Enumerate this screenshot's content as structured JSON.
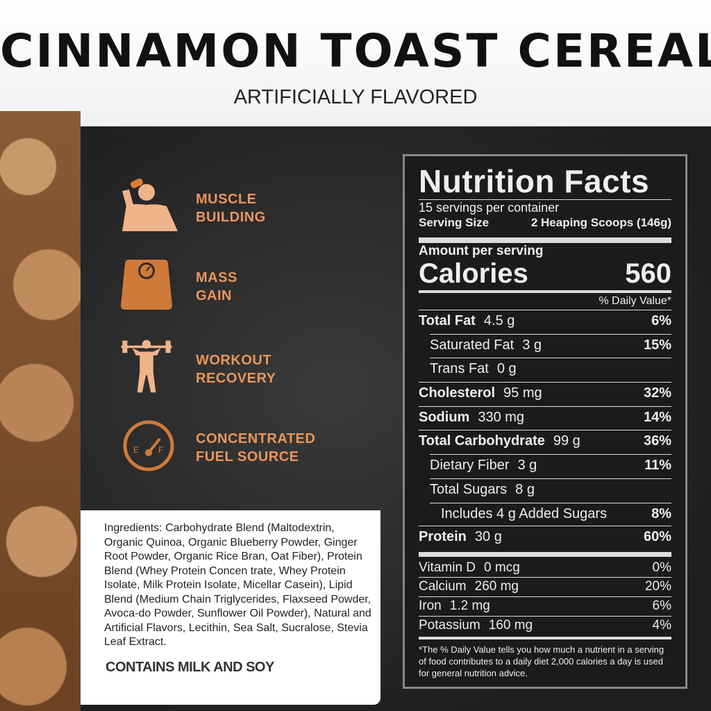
{
  "header": {
    "title": "CINNAMON TOAST CEREAL",
    "subtitle": "ARTIFICIALLY FLAVORED"
  },
  "features": [
    {
      "icon": "drinking-man-icon",
      "label": "MUSCLE BUILDING"
    },
    {
      "icon": "scale-icon",
      "label": "MASS GAIN"
    },
    {
      "icon": "weightlifter-icon",
      "label": "WORKOUT RECOVERY"
    },
    {
      "icon": "fuel-gauge-icon",
      "label": "CONCENTRATED FUEL SOURCE"
    }
  ],
  "colors": {
    "accent": "#e8965c",
    "icon": "#f0b48a",
    "panel": "#2a2a2a"
  },
  "ingredients": {
    "label": "Ingredients:",
    "text": "Carbohydrate Blend (Maltodextrin, Organic Quinoa, Organic Blueberry Powder, Ginger Root Powder, Organic Rice Bran, Oat Fiber), Protein Blend (Whey Protein Concen trate, Whey Protein Isolate, Milk Protein Isolate, Micellar Casein), Lipid Blend (Medium Chain Triglycerides, Flaxseed Powder, Avoca-do Powder, Sunflower Oil Powder), Natural and Artificial Flavors, Lecithin, Sea Salt, Sucralose, Stevia Leaf Extract.",
    "allergen": "CONTAINS MILK AND SOY"
  },
  "nutrition": {
    "title": "Nutrition Facts",
    "servings": "15 servings per container",
    "serving_size_label": "Serving Size",
    "serving_size": "2 Heaping Scoops (146g)",
    "amount_label": "Amount per serving",
    "calories_label": "Calories",
    "calories": "560",
    "dv_label": "% Daily Value*",
    "rows": [
      {
        "name": "Total Fat",
        "amount": "4.5 g",
        "dv": "6%",
        "bold": true,
        "indent": 0
      },
      {
        "name": "Saturated Fat",
        "amount": "3 g",
        "dv": "15%",
        "bold": false,
        "indent": 1
      },
      {
        "name": "Trans Fat",
        "amount": "0 g",
        "dv": "",
        "bold": false,
        "indent": 1,
        "italic": "Trans"
      },
      {
        "name": "Cholesterol",
        "amount": "95 mg",
        "dv": "32%",
        "bold": true,
        "indent": 0
      },
      {
        "name": "Sodium",
        "amount": "330 mg",
        "dv": "14%",
        "bold": true,
        "indent": 0
      },
      {
        "name": "Total Carbohydrate",
        "amount": "99 g",
        "dv": "36%",
        "bold": true,
        "indent": 0
      },
      {
        "name": "Dietary Fiber",
        "amount": "3 g",
        "dv": "11%",
        "bold": false,
        "indent": 1
      },
      {
        "name": "Total Sugars",
        "amount": "8 g",
        "dv": "",
        "bold": false,
        "indent": 1
      },
      {
        "name": "Includes 4 g Added Sugars",
        "amount": "",
        "dv": "8%",
        "bold": false,
        "indent": 2
      },
      {
        "name": "Protein",
        "amount": "30 g",
        "dv": "60%",
        "bold": true,
        "indent": 0
      }
    ],
    "minerals": [
      {
        "name": "Vitamin D",
        "amount": "0 mcg",
        "dv": "0%"
      },
      {
        "name": "Calcium",
        "amount": "260 mg",
        "dv": "20%"
      },
      {
        "name": "Iron",
        "amount": "1.2 mg",
        "dv": "6%"
      },
      {
        "name": "Potassium",
        "amount": "160 mg",
        "dv": "4%"
      }
    ],
    "footnote": "*The % Daily Value tells you how much a nutrient in a serving of food contributes to a daily diet 2,000 calories a day is used for general nutrition advice."
  }
}
